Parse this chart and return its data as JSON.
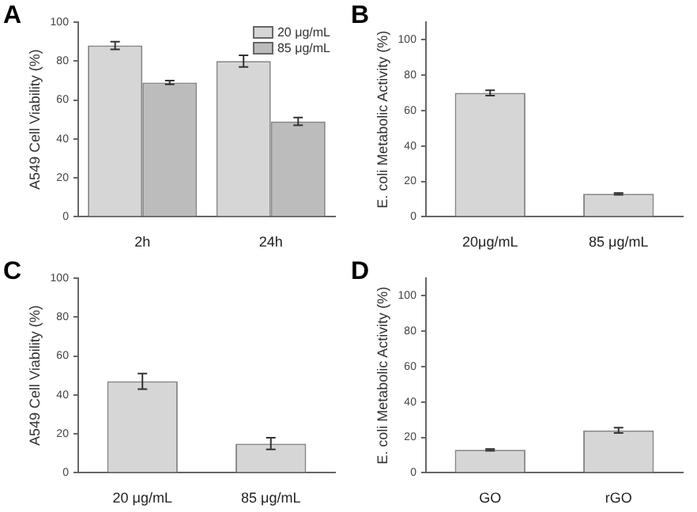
{
  "chart_data": [
    {
      "type": "bar",
      "title": "A",
      "ylabel": "A549 Cell Viability (%)",
      "categories": [
        "2h",
        "24h"
      ],
      "legend": "top right",
      "series": [
        {
          "name": "20 μg/mL",
          "color": "#d6d6d6",
          "values": [
            88,
            80
          ],
          "errors": [
            2,
            3
          ]
        },
        {
          "name": "85 μg/mL",
          "color": "#bcbcbc",
          "values": [
            69,
            49
          ],
          "errors": [
            1,
            2
          ]
        }
      ],
      "ylim": [
        0,
        100
      ],
      "yticks": [
        0,
        20,
        40,
        60,
        80,
        100
      ]
    },
    {
      "type": "bar",
      "title": "B",
      "ylabel": "E. coli Metabolic Activity (%)",
      "categories": [
        "20μg/mL",
        "85 μg/mL"
      ],
      "series": [
        {
          "color": "#d6d6d6",
          "values": [
            70,
            13
          ],
          "errors": [
            1.5,
            0.5
          ]
        }
      ],
      "ylim": [
        0,
        110
      ],
      "yticks": [
        0,
        20,
        40,
        60,
        80,
        100
      ]
    },
    {
      "type": "bar",
      "title": "C",
      "ylabel": "A549 Cell Viability (%)",
      "categories": [
        "20 μg/mL",
        "85 μg/mL"
      ],
      "series": [
        {
          "color": "#d6d6d6",
          "values": [
            47,
            15
          ],
          "errors": [
            4,
            3
          ]
        }
      ],
      "ylim": [
        0,
        100
      ],
      "yticks": [
        0,
        20,
        40,
        60,
        80,
        100
      ]
    },
    {
      "type": "bar",
      "title": "D",
      "ylabel": "E. coli Metabolic Activity (%)",
      "categories": [
        "GO",
        "rGO"
      ],
      "series": [
        {
          "color": "#d6d6d6",
          "values": [
            13,
            24
          ],
          "errors": [
            0.5,
            1.5
          ]
        }
      ],
      "ylim": [
        0,
        110
      ],
      "yticks": [
        0,
        20,
        40,
        60,
        80,
        100
      ]
    }
  ]
}
